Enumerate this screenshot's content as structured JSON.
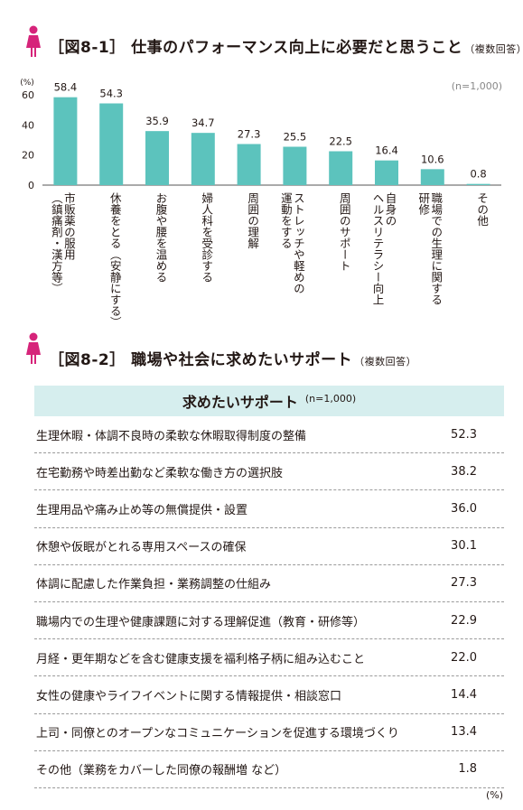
{
  "figure1": {
    "title": "［図8-1］ 仕事のパフォーマンス向上に必要だと思うこと",
    "note": "（複数回答）",
    "n_label": "(n=1,000)",
    "unit_label": "(%)"
  },
  "chart_data": {
    "type": "bar",
    "title": "［図8-1］ 仕事のパフォーマンス向上に必要だと思うこと",
    "ylabel": "(%)",
    "ylim": [
      0,
      60
    ],
    "yticks": [
      0,
      20,
      40,
      60
    ],
    "grid": false,
    "bar_color": "#5cc3bd",
    "categories": [
      "市販薬の服用（鎮痛剤・漢方等）",
      "休養をとる（安静にする）",
      "お腹や腰を温める",
      "婦人科を受診する",
      "周囲の理解",
      "ストレッチや軽めの運動をする",
      "周囲のサポート",
      "自身のヘルスリテラシー向上",
      "職場での生理に関する研修",
      "その他"
    ],
    "values": [
      58.4,
      54.3,
      35.9,
      34.7,
      27.3,
      25.5,
      22.5,
      16.4,
      10.6,
      0.8
    ],
    "category_lines": [
      [
        "市販薬の服用",
        "（鎮痛剤・漢方等）"
      ],
      [
        "休養をとる（安静にする）"
      ],
      [
        "お腹や腰を温める"
      ],
      [
        "婦人科を受診する"
      ],
      [
        "周囲の理解"
      ],
      [
        "ストレッチや軽めの",
        "運動をする"
      ],
      [
        "周囲のサポート"
      ],
      [
        "自身の",
        "ヘルスリテラシー向上"
      ],
      [
        "職場での生理に関する",
        "研修"
      ],
      [
        "その他"
      ]
    ]
  },
  "figure2": {
    "title": "［図8-2］ 職場や社会に求めたいサポート",
    "note": "（複数回答）",
    "table_header": "求めたいサポート",
    "n_label": "(n=1,000)",
    "unit_label": "(%)",
    "rows": [
      {
        "label": "生理休暇・体調不良時の柔軟な休暇取得制度の整備",
        "value": "52.3"
      },
      {
        "label": "在宅勤務や時差出勤など柔軟な働き方の選択肢",
        "value": "38.2"
      },
      {
        "label": "生理用品や痛み止め等の無償提供・設置",
        "value": "36.0"
      },
      {
        "label": "休憩や仮眠がとれる専用スペースの確保",
        "value": "30.1"
      },
      {
        "label": "体調に配慮した作業負担・業務調整の仕組み",
        "value": "27.3"
      },
      {
        "label": "職場内での生理や健康課題に対する理解促進（教育・研修等）",
        "value": "22.9"
      },
      {
        "label": "月経・更年期などを含む健康支援を福利格子柄に組み込むこと",
        "value": "22.0"
      },
      {
        "label": "女性の健康やライフイベントに関する情報提供・相談窓口",
        "value": "14.4"
      },
      {
        "label": "上司・同僚とのオープンなコミュニケーションを促進する環境づくり",
        "value": "13.4"
      },
      {
        "label": "その他（業務をカバーした同僚の報酬増 など）",
        "value": "1.8"
      }
    ]
  },
  "colors": {
    "accent_pink": "#d6247a",
    "bar": "#5cc3bd",
    "table_header_bg": "#d6eeee"
  },
  "icons": {
    "figure_marker": "woman-icon"
  }
}
